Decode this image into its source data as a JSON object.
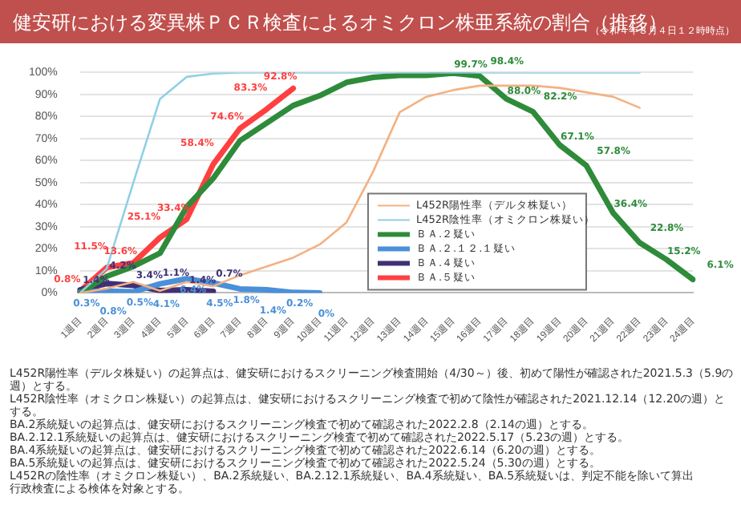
{
  "chart_data": {
    "type": "line",
    "title": "健安研における変異株ＰＣＲ検査によるオミクロン株亜系統の割合（推移）",
    "subtitle": "（令和４年８月４日１２時時点）",
    "categories": [
      "1週目",
      "2週目",
      "3週目",
      "4週目",
      "5週目",
      "6週目",
      "7週目",
      "8週目",
      "9週目",
      "10週目",
      "11週目",
      "12週目",
      "13週目",
      "14週目",
      "15週目",
      "16週目",
      "17週目",
      "18週目",
      "19週目",
      "20週目",
      "21週目",
      "22週目",
      "23週目",
      "24週目"
    ],
    "series": [
      {
        "name": "L452R陽性率（デルタ株疑い）",
        "color": "#f4b183",
        "values": [
          0,
          2,
          5,
          1,
          5,
          3,
          8,
          12,
          16,
          22,
          32,
          55,
          82,
          89,
          92,
          94,
          94,
          94,
          93,
          91,
          89,
          84,
          null,
          null
        ]
      },
      {
        "name": "L452R陰性率（オミクロン株疑い）",
        "color": "#8fd0e6",
        "values": [
          0,
          11,
          50,
          88,
          98,
          99.5,
          100,
          100,
          100,
          100,
          100,
          100,
          100,
          100,
          null,
          100,
          100,
          100,
          100,
          100,
          100,
          100,
          null,
          null
        ]
      },
      {
        "name": "ＢＡ.２疑い",
        "color": "#2e8b3a",
        "values": [
          0,
          7.5,
          12,
          18,
          39,
          52,
          69,
          77,
          85,
          89.5,
          95.5,
          97.8,
          98.7,
          98.7,
          99.7,
          98.4,
          88.0,
          82.2,
          67.1,
          57.8,
          36.4,
          22.8,
          15.2,
          6.1
        ],
        "value_labels": [
          null,
          null,
          null,
          null,
          null,
          null,
          null,
          null,
          null,
          null,
          null,
          null,
          null,
          null,
          "99.7%",
          "98.4%",
          "88.0%",
          "82.2%",
          "67.1%",
          "57.8%",
          "36.4%",
          "22.8%",
          "15.2%",
          "6.1%"
        ]
      },
      {
        "name": "ＢＡ.２.１２.１疑い",
        "color": "#4a90d9",
        "values": [
          0.3,
          0.8,
          0.5,
          4.1,
          6.4,
          4.5,
          1.8,
          1.4,
          0.2,
          0,
          null,
          null,
          null,
          null,
          null,
          null,
          null,
          null,
          null,
          null,
          null,
          null,
          null,
          null
        ],
        "value_labels": [
          "0.3%",
          "0.8%",
          "0.5%",
          "4.1%",
          "6.4%",
          "4.5%",
          "1.8%",
          "1.4%",
          "0.2%",
          "0%",
          null,
          null,
          null,
          null,
          null,
          null,
          null,
          null,
          null,
          null,
          null,
          null,
          null,
          null
        ]
      },
      {
        "name": "ＢＡ.４疑い",
        "color": "#403075",
        "values": [
          1.4,
          4.2,
          3.4,
          1.1,
          1.4,
          0.7,
          null,
          null,
          null,
          null,
          null,
          null,
          null,
          null,
          null,
          null,
          null,
          null,
          null,
          null,
          null,
          null,
          null,
          null
        ],
        "value_labels": [
          "1.4%",
          "4.2%",
          "3.4%",
          "1.1%",
          "1.4%",
          "0.7%",
          null,
          null,
          null,
          null,
          null,
          null,
          null,
          null,
          null,
          null,
          null,
          null,
          null,
          null,
          null,
          null,
          null,
          null
        ]
      },
      {
        "name": "ＢＡ.５疑い",
        "color": "#ff4040",
        "values": [
          0.8,
          11.5,
          13.6,
          25.1,
          33.4,
          58.4,
          74.6,
          83.3,
          92.8,
          null,
          null,
          null,
          null,
          null,
          null,
          null,
          null,
          null,
          null,
          null,
          null,
          null,
          null,
          null
        ],
        "value_labels": [
          "0.8%",
          "11.5%",
          "13.6%",
          "25.1%",
          "33.4%",
          "58.4%",
          "74.6%",
          "83.3%",
          "92.8%",
          null,
          null,
          null,
          null,
          null,
          null,
          null,
          null,
          null,
          null,
          null,
          null,
          null,
          null,
          null
        ]
      }
    ],
    "ylim": [
      0,
      100
    ],
    "yticks": [
      {
        "value": 0,
        "label": "0%"
      },
      {
        "value": 10,
        "label": "10%"
      },
      {
        "value": 20,
        "label": "20%"
      },
      {
        "value": 30,
        "label": "30%"
      },
      {
        "value": 40,
        "label": "40%"
      },
      {
        "value": 50,
        "label": "50%"
      },
      {
        "value": 60,
        "label": "60%"
      },
      {
        "value": 70,
        "label": "70%"
      },
      {
        "value": 80,
        "label": "80%"
      },
      {
        "value": 90,
        "label": "90%"
      },
      {
        "value": 100,
        "label": "100%"
      }
    ],
    "grid": "y",
    "legend": "bottom right",
    "marker": "none",
    "line_style": "solid",
    "annotations": [
      "L452R陽性率（デルタ株疑い）の起算点は、健安研におけるスクリーニング検査開始（4/30～）後、初めて陽性が確認された2021.5.3（5.9の週）とする。",
      "L452R陰性率（オミクロン株疑い）の起算点は、健安研におけるスクリーニング検査で初めて陰性が確認された2021.12.14（12.20の週）とする。",
      "BA.2系統疑いの起算点は、健安研におけるスクリーニング検査で初めて確認された2022.2.8（2.14の週）とする。",
      "BA.2.12.1系統疑いの起算点は、健安研におけるスクリーニング検査で初めて確認された2022.5.17（5.23の週）とする。",
      "BA.4系統疑いの起算点は、健安研におけるスクリーニング検査で初めて確認された2022.6.14（6.20の週）とする。",
      "BA.5系統疑いの起算点は、健安研におけるスクリーニング検査で初めて確認された2022.5.24（5.30の週）とする。",
      "L452Rの陰性率（オミクロン株疑い）、BA.2系統疑い、BA.2.12.1系統疑い、BA.4系統疑い、BA.5系統疑いは、判定不能を除いて算出",
      "行政検査による検体を対象とする。"
    ]
  }
}
